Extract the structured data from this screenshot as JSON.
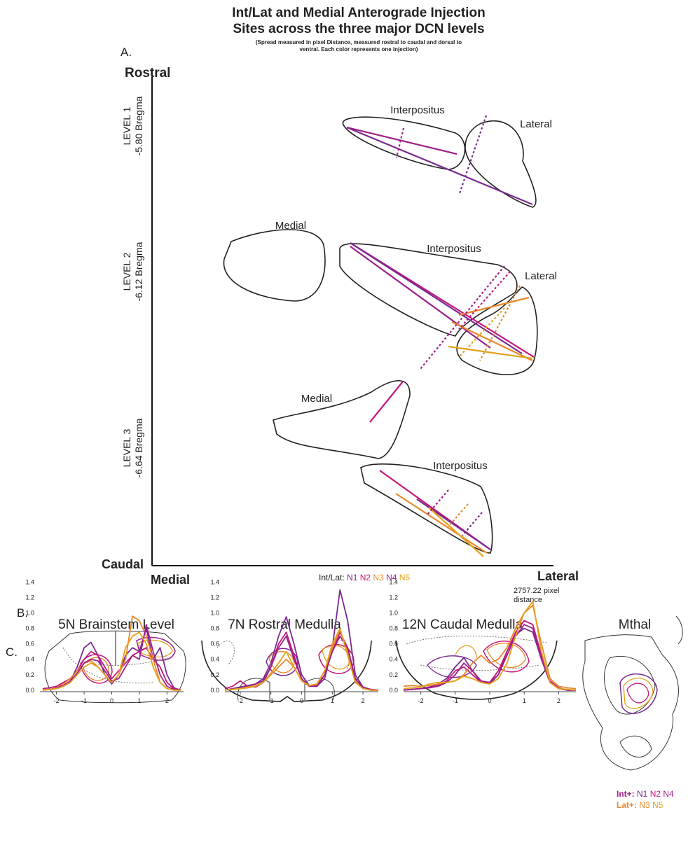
{
  "figure": {
    "title_lines": [
      "Int/Lat and Medial Anterograde Injection",
      "Sites across the three major DCN levels"
    ],
    "subtitle_lines": [
      "(Spread measured in pixel Distance, measured rostral to caudal and dorsal to",
      "ventral. Each color represents one injection)"
    ]
  },
  "panel_a": {
    "label": "A.",
    "rostral": "Rostral",
    "caudal": "Caudal",
    "medial": "Medial",
    "lateral": "Lateral",
    "distance_lines": [
      "2757.22 pixel",
      "distance"
    ],
    "levels": [
      {
        "name": "LEVEL 1",
        "bregma": "-5.80 Bregma"
      },
      {
        "name": "LEVEL 2",
        "bregma": "-6.12 Bregma"
      },
      {
        "name": "LEVEL 3",
        "bregma": "-6.64 Bregma"
      }
    ],
    "region_labels": [
      "Interpositus",
      "Lateral",
      "Medial",
      "Interpositus",
      "Lateral",
      "Medial",
      "Interpositus"
    ],
    "legend_label": "Int/Lat:"
  },
  "panel_b": {
    "label": "B.",
    "titles": [
      "5N Brainstem Level",
      "7N Rostral Medulla",
      "12N Caudal Medulla",
      "Mthal"
    ]
  },
  "panel_c": {
    "label": "C.",
    "int_label": "Int+:",
    "lat_label": "Lat+:"
  },
  "chart_data": [
    {
      "type": "line",
      "x": [
        -2.5,
        -2.25,
        -2,
        -1.75,
        -1.5,
        -1.25,
        -1,
        -0.75,
        -0.5,
        -0.25,
        0,
        0.25,
        0.5,
        0.75,
        1,
        1.25,
        1.5,
        1.75,
        2,
        2.25,
        2.5
      ],
      "xlim": [
        -2.6,
        2.6
      ],
      "xticks": [
        -2,
        -1,
        0,
        1,
        2
      ],
      "ylim": [
        -0.02,
        1.45
      ],
      "yticks": [
        {
          "value": 0,
          "label": "0.0"
        },
        0.2,
        0.4,
        0.6,
        0.8,
        {
          "value": 1,
          "label": "1.0"
        },
        1.2,
        1.4
      ],
      "series": [
        {
          "name": "N1",
          "color": "#7a2a90",
          "values": [
            0,
            0.01,
            0.02,
            0.05,
            0.12,
            0.3,
            0.55,
            0.62,
            0.45,
            0.2,
            0.08,
            0.2,
            0.45,
            0.55,
            0.5,
            0.8,
            0.4,
            0.55,
            0.2,
            0.03,
            0
          ]
        },
        {
          "name": "N2",
          "color": "#c4177c",
          "values": [
            0.02,
            0.03,
            0.05,
            0.1,
            0.15,
            0.25,
            0.4,
            0.5,
            0.45,
            0.3,
            0.15,
            0.25,
            0.35,
            0.45,
            0.5,
            0.55,
            0.4,
            0.3,
            0.1,
            0.02,
            0
          ]
        },
        {
          "name": "N3",
          "color": "#e8892b",
          "values": [
            0,
            0.01,
            0.03,
            0.08,
            0.15,
            0.25,
            0.35,
            0.38,
            0.3,
            0.2,
            0.1,
            0.2,
            0.4,
            0.96,
            0.9,
            0.7,
            0.4,
            0.1,
            0.02,
            0,
            0
          ]
        },
        {
          "name": "N4",
          "color": "#9e1f8a",
          "values": [
            0,
            0.01,
            0.03,
            0.06,
            0.12,
            0.22,
            0.35,
            0.4,
            0.38,
            0.25,
            0.12,
            0.15,
            0.3,
            0.45,
            0.4,
            0.85,
            0.5,
            0.2,
            0.05,
            0.01,
            0
          ]
        },
        {
          "name": "N5",
          "color": "#e3a21a",
          "values": [
            0,
            0.01,
            0.02,
            0.05,
            0.1,
            0.2,
            0.3,
            0.35,
            0.3,
            0.2,
            0.1,
            0.2,
            0.55,
            0.7,
            0.75,
            0.6,
            0.3,
            0.1,
            0.02,
            0,
            0
          ]
        }
      ]
    },
    {
      "type": "line",
      "x": [
        -2.5,
        -2.25,
        -2,
        -1.75,
        -1.5,
        -1.25,
        -1,
        -0.75,
        -0.5,
        -0.25,
        0,
        0.25,
        0.5,
        0.75,
        1,
        1.25,
        1.5,
        1.75,
        2,
        2.25,
        2.5
      ],
      "xlim": [
        -2.5,
        2.5
      ],
      "xticks": [
        -2,
        -1,
        0,
        1,
        2
      ],
      "ylim": [
        -0.02,
        1.45
      ],
      "yticks": [
        {
          "value": 0,
          "label": "0.0"
        },
        0.2,
        0.4,
        0.6,
        0.8,
        {
          "value": 1,
          "label": "1.0"
        },
        1.2,
        1.4
      ],
      "series": [
        {
          "name": "N1",
          "color": "#7a2a90",
          "values": [
            0,
            0.02,
            0.04,
            0.06,
            0.08,
            0.15,
            0.35,
            0.7,
            0.95,
            0.6,
            0.2,
            0.06,
            0.05,
            0.15,
            0.55,
            1.3,
            0.9,
            0.2,
            0.04,
            0.01,
            0
          ]
        },
        {
          "name": "N2",
          "color": "#c4177c",
          "values": [
            0.02,
            0.05,
            0.12,
            0.05,
            0.04,
            0.1,
            0.3,
            0.6,
            0.75,
            0.45,
            0.15,
            0.05,
            0.06,
            0.2,
            0.5,
            0.75,
            0.55,
            0.15,
            0.03,
            0.01,
            0
          ]
        },
        {
          "name": "N3",
          "color": "#e8892b",
          "values": [
            0,
            0.01,
            0.02,
            0.03,
            0.05,
            0.1,
            0.2,
            0.3,
            0.4,
            0.3,
            0.12,
            0.05,
            0.08,
            0.25,
            0.55,
            0.78,
            0.5,
            0.12,
            0.02,
            0,
            0
          ]
        },
        {
          "name": "N4",
          "color": "#9e1f8a",
          "values": [
            0,
            0.01,
            0.03,
            0.05,
            0.08,
            0.12,
            0.3,
            0.55,
            0.7,
            0.4,
            0.15,
            0.05,
            0.05,
            0.2,
            0.5,
            0.7,
            0.55,
            0.15,
            0.03,
            0,
            0
          ]
        },
        {
          "name": "N5",
          "color": "#e3a21a",
          "values": [
            0,
            0.01,
            0.02,
            0.04,
            0.06,
            0.1,
            0.22,
            0.35,
            0.5,
            0.3,
            0.12,
            0.06,
            0.08,
            0.25,
            0.6,
            0.8,
            0.45,
            0.1,
            0.02,
            0,
            0
          ]
        }
      ]
    },
    {
      "type": "line",
      "x": [
        -2.5,
        -2.25,
        -2,
        -1.75,
        -1.5,
        -1.25,
        -1,
        -0.75,
        -0.5,
        -0.25,
        0,
        0.25,
        0.5,
        0.75,
        1,
        1.25,
        1.5,
        1.75,
        2,
        2.25,
        2.5
      ],
      "xlim": [
        -2.5,
        2.5
      ],
      "xticks": [
        -2,
        -1,
        0,
        1,
        2
      ],
      "ylim": [
        -0.02,
        1.45
      ],
      "yticks": [
        {
          "value": 0,
          "label": "0.0"
        },
        0.2,
        0.4,
        0.6,
        0.8,
        {
          "value": 1,
          "label": "1.0"
        },
        1.2,
        1.4
      ],
      "series": [
        {
          "name": "N1",
          "color": "#7a2a90",
          "values": [
            0,
            0.01,
            0.02,
            0.04,
            0.08,
            0.15,
            0.3,
            0.42,
            0.25,
            0.1,
            0.08,
            0.2,
            0.5,
            0.72,
            0.8,
            0.75,
            0.4,
            0.1,
            0.02,
            0,
            0
          ]
        },
        {
          "name": "N2",
          "color": "#c4177c",
          "values": [
            0,
            0.01,
            0.02,
            0.03,
            0.06,
            0.12,
            0.25,
            0.3,
            0.2,
            0.1,
            0.1,
            0.25,
            0.5,
            0.75,
            0.9,
            0.85,
            0.45,
            0.12,
            0.03,
            0,
            0
          ]
        },
        {
          "name": "N3",
          "color": "#e8892b",
          "values": [
            0.05,
            0.06,
            0.05,
            0.06,
            0.08,
            0.1,
            0.12,
            0.2,
            0.35,
            0.45,
            0.35,
            0.4,
            0.55,
            0.8,
            1.0,
            1.1,
            0.6,
            0.15,
            0.05,
            0.03,
            0.02
          ]
        },
        {
          "name": "N4",
          "color": "#9e1f8a",
          "values": [
            0,
            0.01,
            0.02,
            0.03,
            0.05,
            0.1,
            0.2,
            0.35,
            0.25,
            0.12,
            0.1,
            0.2,
            0.45,
            0.7,
            0.85,
            0.8,
            0.4,
            0.1,
            0.02,
            0,
            0
          ]
        },
        {
          "name": "N5",
          "color": "#e3a21a",
          "values": [
            0.02,
            0.03,
            0.04,
            0.08,
            0.1,
            0.1,
            0.12,
            0.18,
            0.15,
            0.1,
            0.08,
            0.15,
            0.35,
            0.7,
            1.0,
            1.15,
            0.5,
            0.1,
            0.02,
            0.01,
            0
          ]
        }
      ]
    }
  ]
}
